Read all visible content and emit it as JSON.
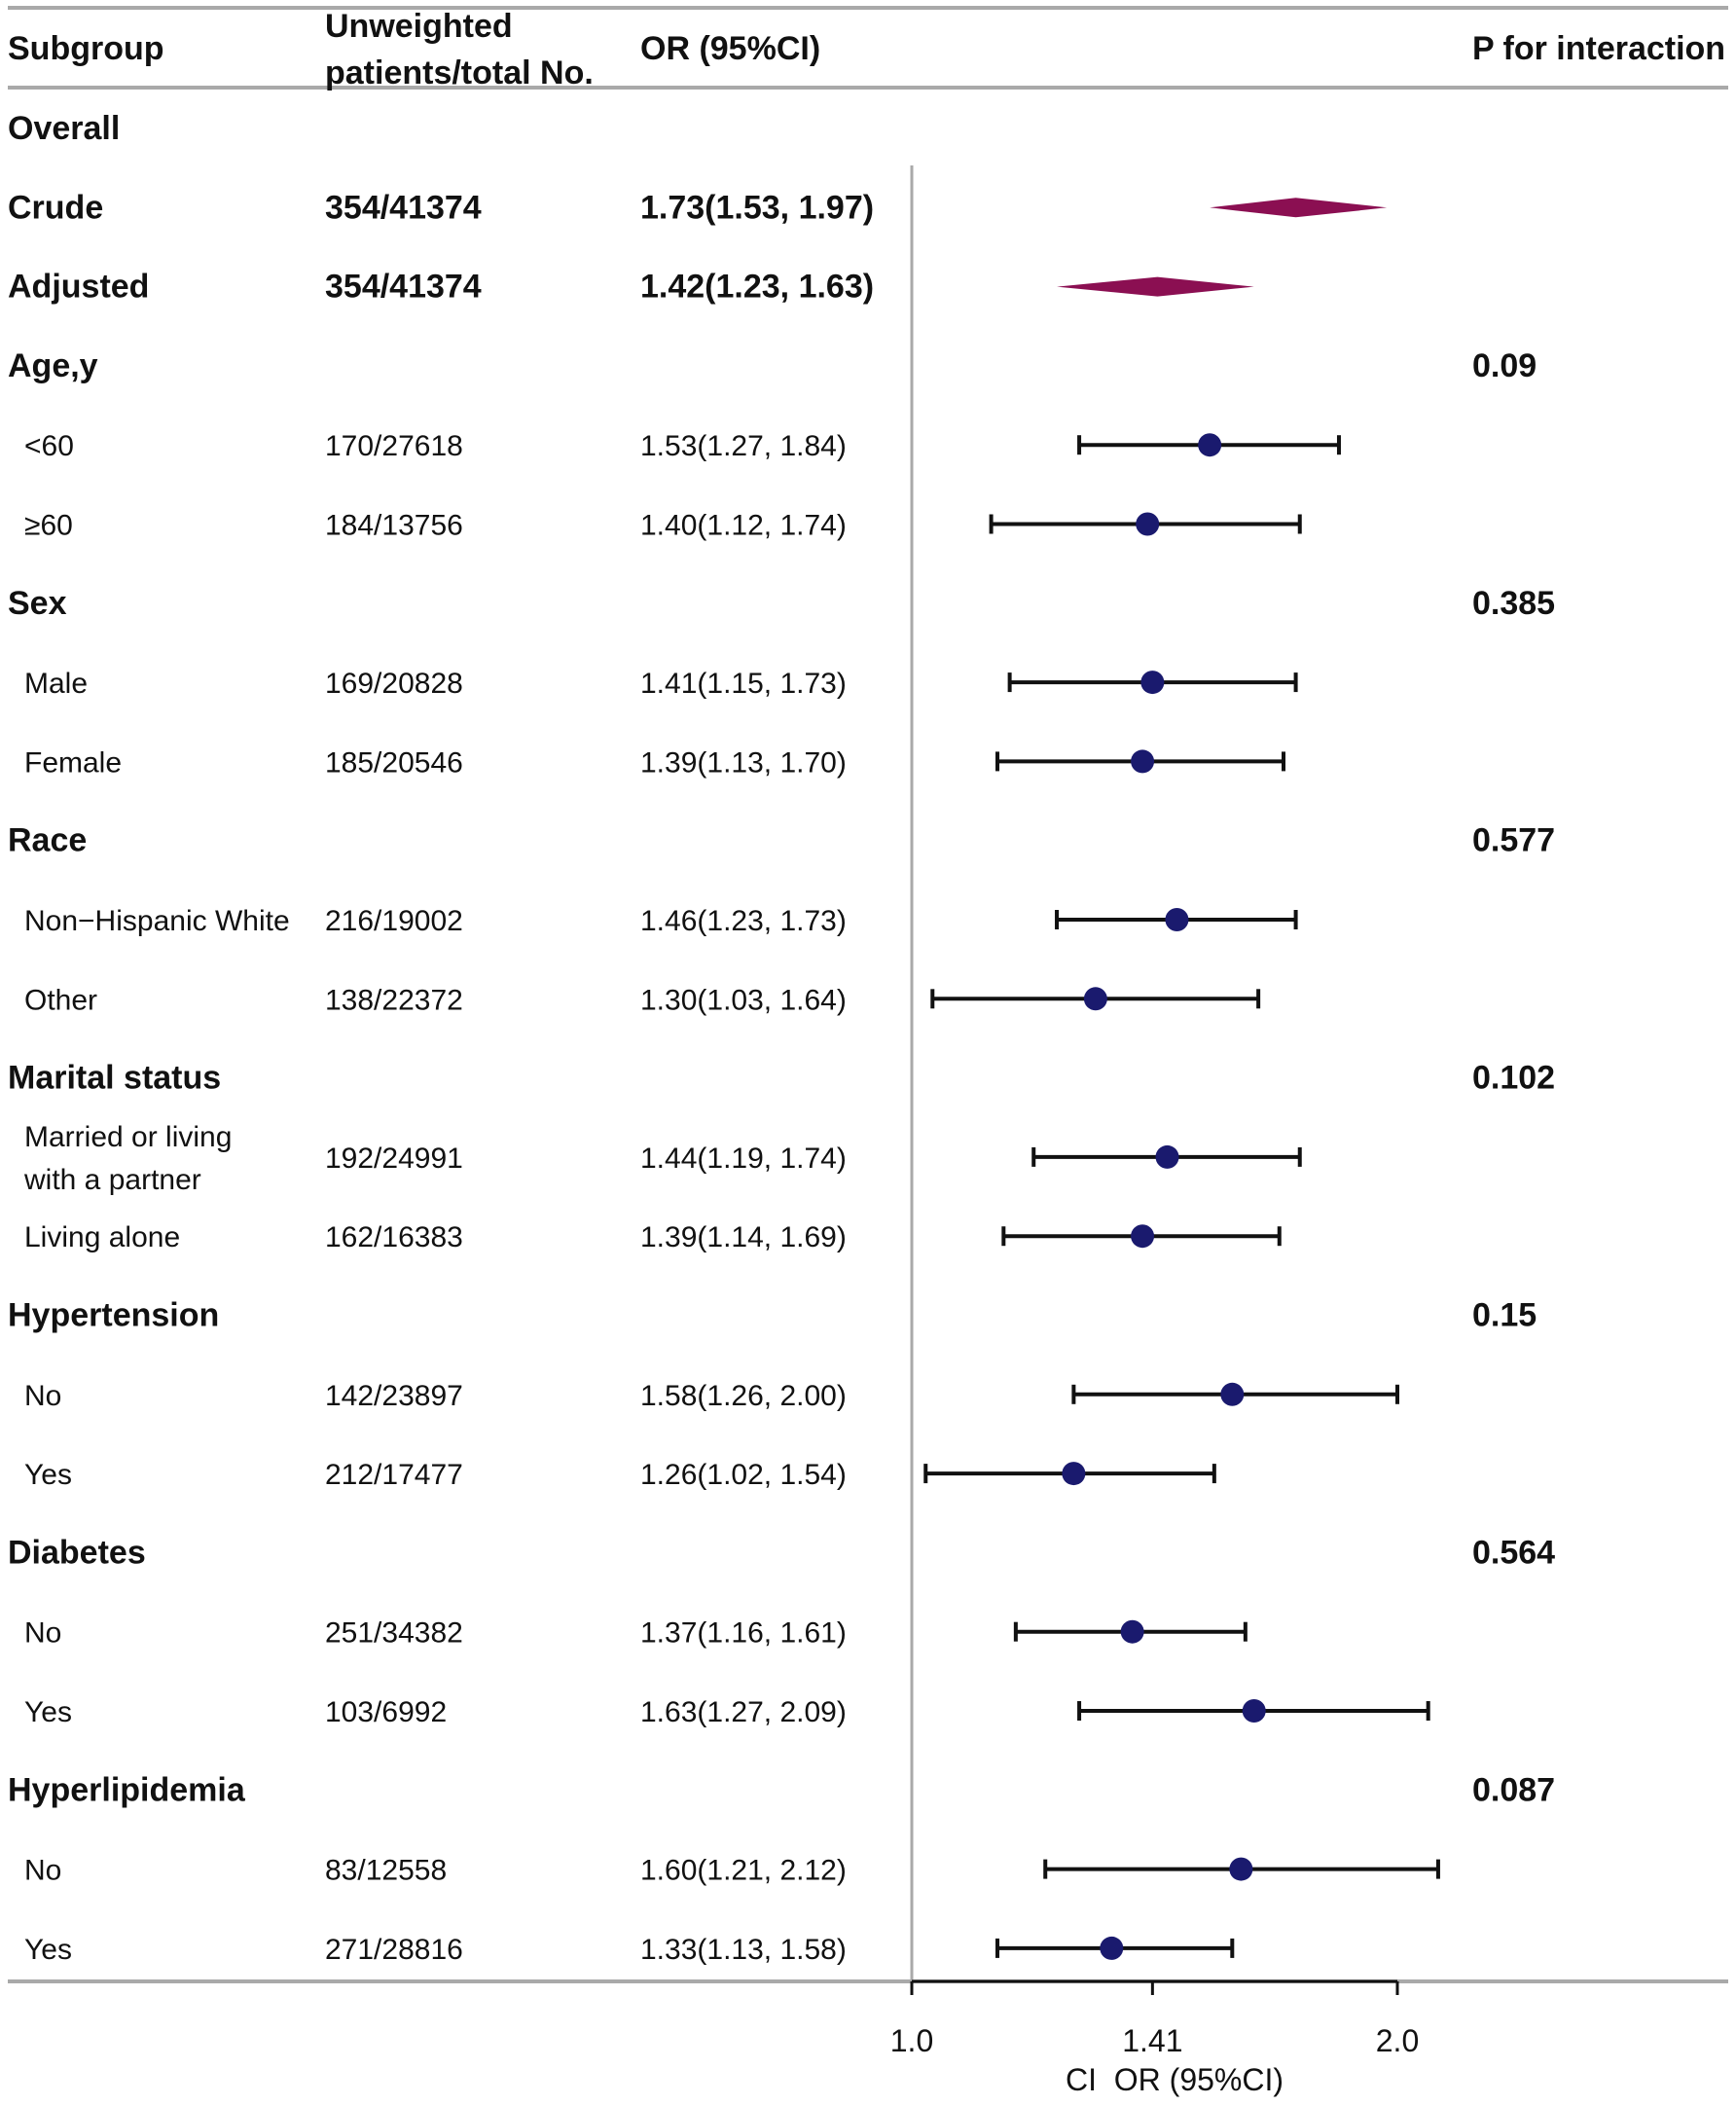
{
  "chart_data": {
    "type": "forest",
    "x_scale": "log2",
    "xlim": [
      1.0,
      2.0
    ],
    "x_ticks": [
      "1.0",
      "1.41",
      "2.0"
    ],
    "x_tick_values": [
      1.0,
      1.41,
      2.0
    ],
    "reference_line": 1.0,
    "xlabel": "CI  OR (95%CI)",
    "columns": {
      "subgroup": "Subgroup",
      "count_line1": "Unweighted",
      "count_line2": "patients/total No.",
      "or": "OR (95%CI)",
      "p": "P for interaction"
    },
    "colors": {
      "diamond": "#8b0f52",
      "point": "#1a1a6e",
      "line": "#111111",
      "rule": "#a9a9a9"
    },
    "rows": [
      {
        "kind": "group",
        "label": "Overall"
      },
      {
        "kind": "summary",
        "label": "Crude",
        "count": "354/41374",
        "or_text": "1.73(1.53, 1.97)",
        "or": 1.73,
        "lo": 1.53,
        "hi": 1.97
      },
      {
        "kind": "summary",
        "label": "Adjusted",
        "count": "354/41374",
        "or_text": "1.42(1.23, 1.63)",
        "or": 1.42,
        "lo": 1.23,
        "hi": 1.63
      },
      {
        "kind": "group",
        "label": "Age,y",
        "p": "0.09"
      },
      {
        "kind": "item",
        "label": "<60",
        "count": "170/27618",
        "or_text": "1.53(1.27, 1.84)",
        "or": 1.53,
        "lo": 1.27,
        "hi": 1.84
      },
      {
        "kind": "item",
        "label": "≥60",
        "count": "184/13756",
        "or_text": "1.40(1.12, 1.74)",
        "or": 1.4,
        "lo": 1.12,
        "hi": 1.74
      },
      {
        "kind": "group",
        "label": "Sex",
        "p": "0.385"
      },
      {
        "kind": "item",
        "label": "Male",
        "count": "169/20828",
        "or_text": "1.41(1.15, 1.73)",
        "or": 1.41,
        "lo": 1.15,
        "hi": 1.73
      },
      {
        "kind": "item",
        "label": "Female",
        "count": "185/20546",
        "or_text": "1.39(1.13, 1.70)",
        "or": 1.39,
        "lo": 1.13,
        "hi": 1.7
      },
      {
        "kind": "group",
        "label": "Race",
        "p": "0.577"
      },
      {
        "kind": "item",
        "label": "Non−Hispanic White",
        "count": "216/19002",
        "or_text": "1.46(1.23, 1.73)",
        "or": 1.46,
        "lo": 1.23,
        "hi": 1.73
      },
      {
        "kind": "item",
        "label": "Other",
        "count": "138/22372",
        "or_text": "1.30(1.03, 1.64)",
        "or": 1.3,
        "lo": 1.03,
        "hi": 1.64
      },
      {
        "kind": "group",
        "label": "Marital status",
        "p": "0.102"
      },
      {
        "kind": "item",
        "label": "Married or living",
        "label2": "with a partner",
        "count": "192/24991",
        "or_text": "1.44(1.19, 1.74)",
        "or": 1.44,
        "lo": 1.19,
        "hi": 1.74
      },
      {
        "kind": "item",
        "label": "Living alone",
        "count": "162/16383",
        "or_text": "1.39(1.14, 1.69)",
        "or": 1.39,
        "lo": 1.14,
        "hi": 1.69
      },
      {
        "kind": "group",
        "label": "Hypertension",
        "p": "0.15"
      },
      {
        "kind": "item",
        "label": "No",
        "count": "142/23897",
        "or_text": "1.58(1.26, 2.00)",
        "or": 1.58,
        "lo": 1.26,
        "hi": 2.0
      },
      {
        "kind": "item",
        "label": "Yes",
        "count": "212/17477",
        "or_text": "1.26(1.02, 1.54)",
        "or": 1.26,
        "lo": 1.02,
        "hi": 1.54
      },
      {
        "kind": "group",
        "label": "Diabetes",
        "p": "0.564"
      },
      {
        "kind": "item",
        "label": "No",
        "count": "251/34382",
        "or_text": "1.37(1.16, 1.61)",
        "or": 1.37,
        "lo": 1.16,
        "hi": 1.61
      },
      {
        "kind": "item",
        "label": "Yes",
        "count": "103/6992",
        "or_text": "1.63(1.27, 2.09)",
        "or": 1.63,
        "lo": 1.27,
        "hi": 2.09
      },
      {
        "kind": "group",
        "label": "Hyperlipidemia",
        "p": "0.087"
      },
      {
        "kind": "item",
        "label": "No",
        "count": "83/12558",
        "or_text": "1.60(1.21, 2.12)",
        "or": 1.6,
        "lo": 1.21,
        "hi": 2.12
      },
      {
        "kind": "item",
        "label": "Yes",
        "count": "271/28816",
        "or_text": "1.33(1.13, 1.58)",
        "or": 1.33,
        "lo": 1.13,
        "hi": 1.58
      }
    ]
  }
}
